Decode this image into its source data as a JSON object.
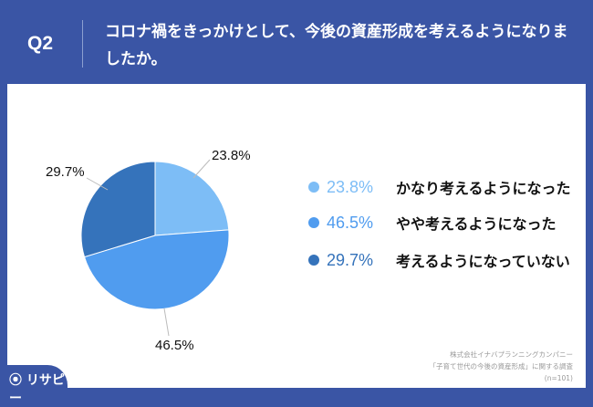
{
  "header": {
    "q": "Q2",
    "title": "コロナ禍をきっかけとして、今後の資産形成を考えるようになりましたか。"
  },
  "chart_data": {
    "type": "pie",
    "title": "",
    "slices": [
      {
        "name": "かなり考えるようになった",
        "value": 23.8,
        "label": "23.8%",
        "color": "#7dbdf6"
      },
      {
        "name": "やや考えるようになった",
        "value": 46.5,
        "label": "46.5%",
        "color": "#509cef"
      },
      {
        "name": "考えるようになっていない",
        "value": 29.7,
        "label": "29.7%",
        "color": "#3573bb"
      }
    ],
    "legend": "right"
  },
  "credit": {
    "line1": "株式会社イナバプランニングカンパニー",
    "line2": "「子育て世代の今後の資産形成」に関する調査",
    "line3": "(n=101)"
  },
  "logo": "リサピー"
}
